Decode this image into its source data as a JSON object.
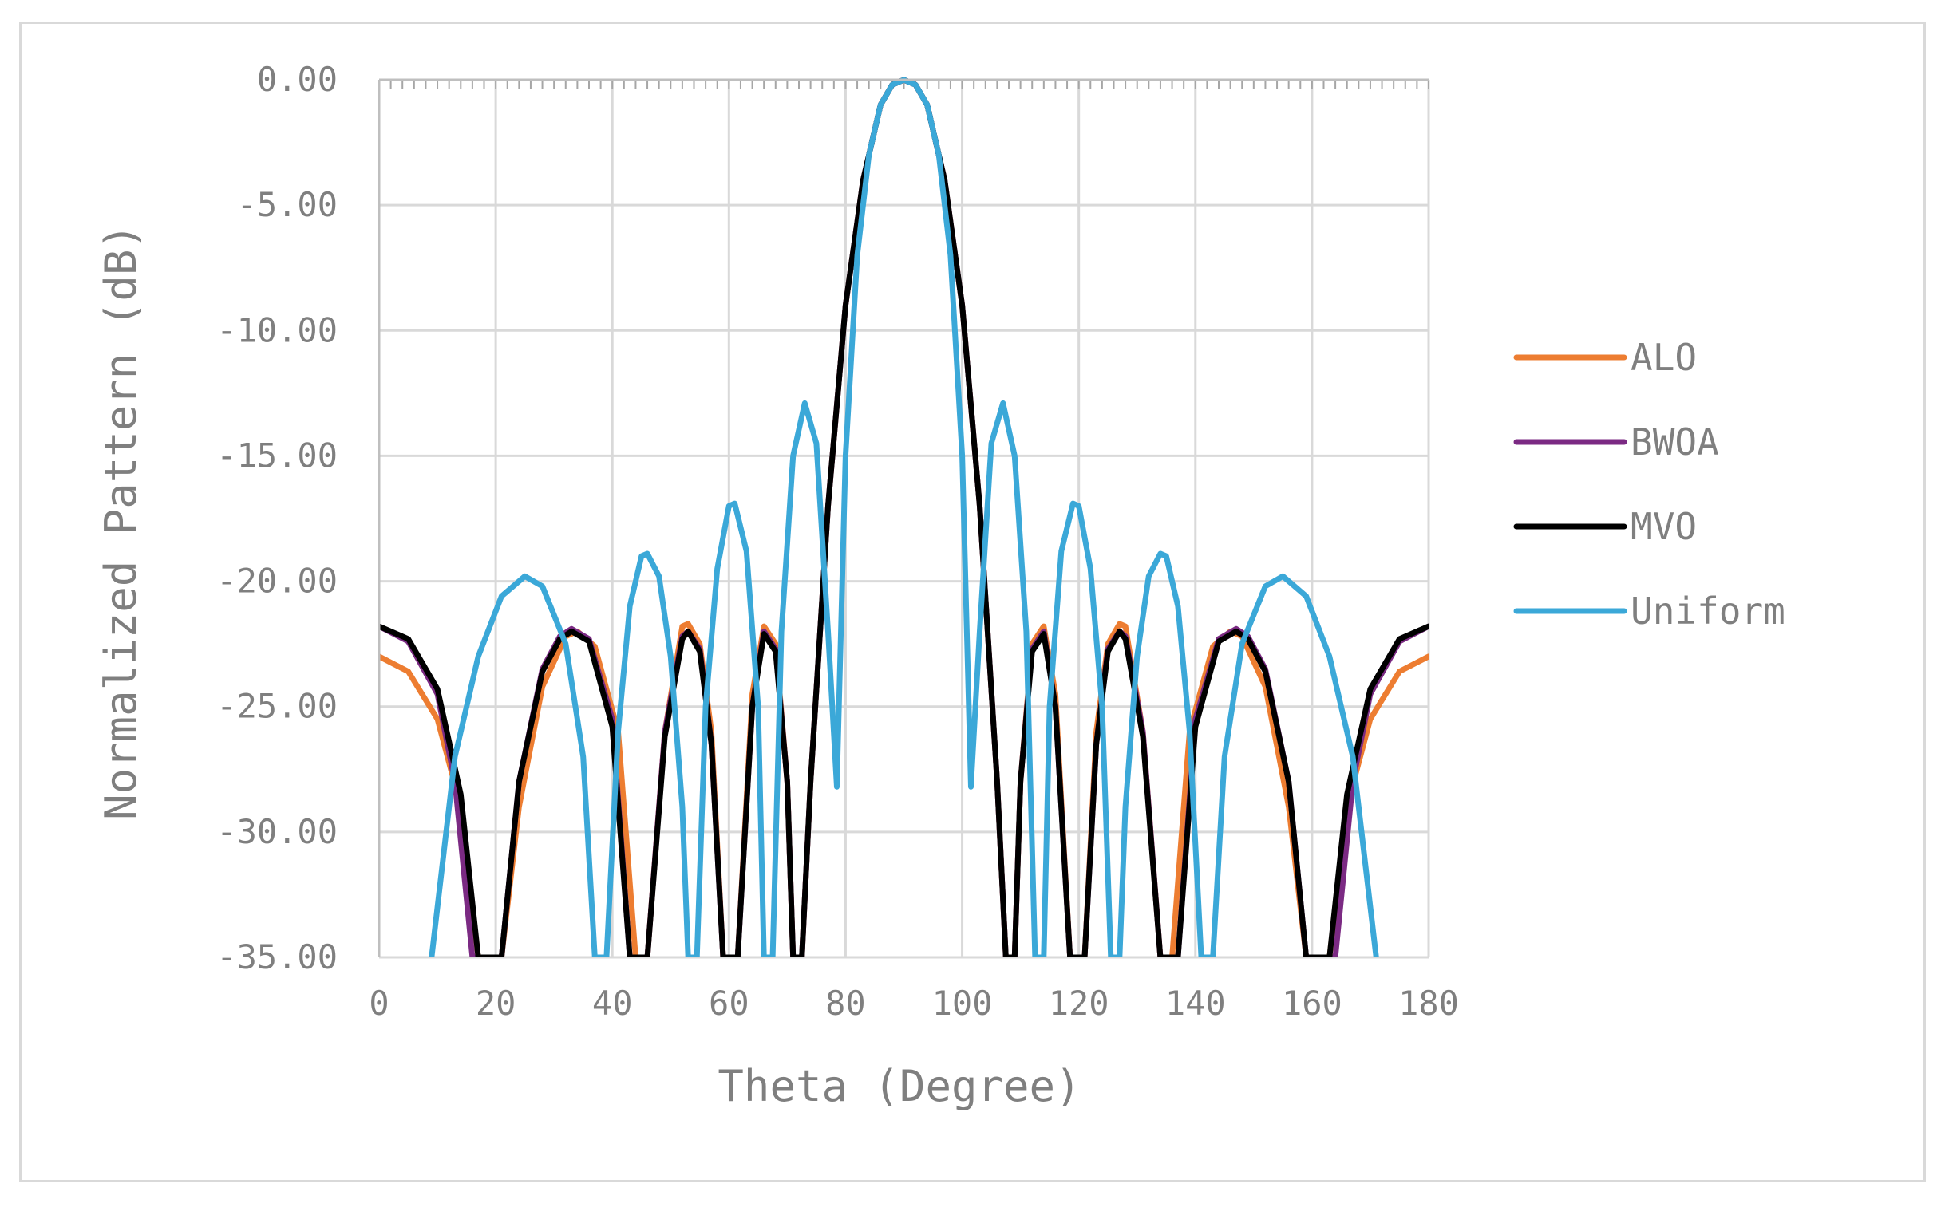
{
  "chart_data": {
    "type": "line",
    "title": "",
    "xlabel": "Theta (Degree)",
    "ylabel": "Normalized Pattern (dB)",
    "xlim": [
      0,
      180
    ],
    "ylim": [
      -35,
      0
    ],
    "x_ticks": [
      0,
      20,
      40,
      60,
      80,
      100,
      120,
      140,
      160,
      180
    ],
    "x_tick_labels": [
      "0",
      "20",
      "40",
      "60",
      "80",
      "100",
      "120",
      "140",
      "160",
      "180"
    ],
    "y_ticks": [
      0,
      -5,
      -10,
      -15,
      -20,
      -25,
      -30,
      -35
    ],
    "y_tick_labels": [
      "0.00",
      "-5.00",
      "-10.00",
      "-15.00",
      "-20.00",
      "-25.00",
      "-30.00",
      "-35.00"
    ],
    "grid": true,
    "legend_position": "right",
    "series": [
      {
        "name": "ALO",
        "color": "#ed7d31",
        "points": [
          [
            0,
            -23
          ],
          [
            5,
            -23.6
          ],
          [
            10,
            -25.5
          ],
          [
            14,
            -29
          ],
          [
            17,
            -35
          ],
          [
            21,
            -35
          ],
          [
            24,
            -29
          ],
          [
            28,
            -24.2
          ],
          [
            32,
            -22.2
          ],
          [
            34,
            -22
          ],
          [
            37,
            -22.6
          ],
          [
            41,
            -26
          ],
          [
            44,
            -35
          ],
          [
            46,
            -35
          ],
          [
            49,
            -26
          ],
          [
            52,
            -21.8
          ],
          [
            53,
            -21.7
          ],
          [
            55,
            -22.5
          ],
          [
            57,
            -26
          ],
          [
            59,
            -35
          ],
          [
            61.5,
            -35
          ],
          [
            64,
            -24.5
          ],
          [
            66,
            -21.8
          ],
          [
            68,
            -22.5
          ],
          [
            70,
            -28
          ],
          [
            71,
            -35
          ],
          [
            72.5,
            -35
          ],
          [
            74,
            -28
          ],
          [
            77,
            -17
          ],
          [
            80,
            -9
          ],
          [
            83,
            -4
          ],
          [
            86,
            -1
          ],
          [
            88,
            -0.2
          ],
          [
            90,
            0
          ],
          [
            92,
            -0.2
          ],
          [
            94,
            -1
          ],
          [
            97,
            -4
          ],
          [
            100,
            -9
          ],
          [
            103,
            -17
          ],
          [
            106,
            -28
          ],
          [
            107.5,
            -35
          ],
          [
            109,
            -35
          ],
          [
            110,
            -28
          ],
          [
            112,
            -22.5
          ],
          [
            114,
            -21.8
          ],
          [
            116,
            -24.5
          ],
          [
            118.5,
            -35
          ],
          [
            121,
            -35
          ],
          [
            123,
            -26
          ],
          [
            125,
            -22.5
          ],
          [
            127,
            -21.7
          ],
          [
            128,
            -21.8
          ],
          [
            131,
            -26
          ],
          [
            134,
            -35
          ],
          [
            136,
            -35
          ],
          [
            139,
            -26
          ],
          [
            143,
            -22.6
          ],
          [
            146,
            -22
          ],
          [
            148,
            -22.2
          ],
          [
            152,
            -24.2
          ],
          [
            156,
            -29
          ],
          [
            159,
            -35
          ],
          [
            163,
            -35
          ],
          [
            166,
            -29
          ],
          [
            170,
            -25.5
          ],
          [
            175,
            -23.6
          ],
          [
            180,
            -23
          ]
        ]
      },
      {
        "name": "BWOA",
        "color": "#7b2a83",
        "points": [
          [
            0,
            -21.8
          ],
          [
            5,
            -22.4
          ],
          [
            10,
            -24.5
          ],
          [
            13,
            -28
          ],
          [
            16,
            -35
          ],
          [
            21,
            -35
          ],
          [
            24,
            -28
          ],
          [
            28,
            -23.5
          ],
          [
            31,
            -22.2
          ],
          [
            33,
            -21.9
          ],
          [
            36,
            -22.3
          ],
          [
            40,
            -25.5
          ],
          [
            43,
            -35
          ],
          [
            46,
            -35
          ],
          [
            49,
            -26
          ],
          [
            52,
            -22.2
          ],
          [
            53,
            -22
          ],
          [
            55,
            -22.7
          ],
          [
            57,
            -26.5
          ],
          [
            59,
            -35
          ],
          [
            61.5,
            -35
          ],
          [
            64,
            -25
          ],
          [
            66,
            -22
          ],
          [
            68,
            -22.7
          ],
          [
            70,
            -28
          ],
          [
            71,
            -35
          ],
          [
            72.5,
            -35
          ],
          [
            74,
            -28
          ],
          [
            77,
            -17
          ],
          [
            80,
            -9
          ],
          [
            83,
            -4
          ],
          [
            86,
            -1
          ],
          [
            88,
            -0.2
          ],
          [
            90,
            0
          ],
          [
            92,
            -0.2
          ],
          [
            94,
            -1
          ],
          [
            97,
            -4
          ],
          [
            100,
            -9
          ],
          [
            103,
            -17
          ],
          [
            106,
            -28
          ],
          [
            107.5,
            -35
          ],
          [
            109,
            -35
          ],
          [
            110,
            -28
          ],
          [
            112,
            -22.7
          ],
          [
            114,
            -22
          ],
          [
            116,
            -25
          ],
          [
            118.5,
            -35
          ],
          [
            121,
            -35
          ],
          [
            123,
            -26.5
          ],
          [
            125,
            -22.7
          ],
          [
            127,
            -22
          ],
          [
            128,
            -22.2
          ],
          [
            131,
            -26
          ],
          [
            134,
            -35
          ],
          [
            137,
            -35
          ],
          [
            140,
            -25.5
          ],
          [
            144,
            -22.3
          ],
          [
            147,
            -21.9
          ],
          [
            149,
            -22.2
          ],
          [
            152,
            -23.5
          ],
          [
            156,
            -28
          ],
          [
            159,
            -35
          ],
          [
            164,
            -35
          ],
          [
            167,
            -28
          ],
          [
            170,
            -24.5
          ],
          [
            175,
            -22.4
          ],
          [
            180,
            -21.8
          ]
        ]
      },
      {
        "name": "MVO",
        "color": "#000000",
        "points": [
          [
            0,
            -21.8
          ],
          [
            5,
            -22.3
          ],
          [
            10,
            -24.3
          ],
          [
            14,
            -28.5
          ],
          [
            17,
            -35
          ],
          [
            21,
            -35
          ],
          [
            24,
            -28
          ],
          [
            28,
            -23.6
          ],
          [
            31,
            -22.3
          ],
          [
            33,
            -22
          ],
          [
            36,
            -22.4
          ],
          [
            40,
            -25.8
          ],
          [
            43,
            -35
          ],
          [
            46,
            -35
          ],
          [
            49,
            -26.2
          ],
          [
            52,
            -22.3
          ],
          [
            53,
            -22
          ],
          [
            55,
            -22.8
          ],
          [
            57,
            -26.5
          ],
          [
            59,
            -35
          ],
          [
            61.5,
            -35
          ],
          [
            64,
            -25
          ],
          [
            66,
            -22.1
          ],
          [
            68,
            -22.8
          ],
          [
            70,
            -28
          ],
          [
            71,
            -35
          ],
          [
            72.5,
            -35
          ],
          [
            74,
            -28
          ],
          [
            77,
            -17
          ],
          [
            80,
            -9
          ],
          [
            83,
            -4
          ],
          [
            86,
            -1
          ],
          [
            88,
            -0.2
          ],
          [
            90,
            0
          ],
          [
            92,
            -0.2
          ],
          [
            94,
            -1
          ],
          [
            97,
            -4
          ],
          [
            100,
            -9
          ],
          [
            103,
            -17
          ],
          [
            106,
            -28
          ],
          [
            107.5,
            -35
          ],
          [
            109,
            -35
          ],
          [
            110,
            -28
          ],
          [
            112,
            -22.8
          ],
          [
            114,
            -22.1
          ],
          [
            116,
            -25
          ],
          [
            118.5,
            -35
          ],
          [
            121,
            -35
          ],
          [
            123,
            -26.5
          ],
          [
            125,
            -22.8
          ],
          [
            127,
            -22
          ],
          [
            128,
            -22.3
          ],
          [
            131,
            -26.2
          ],
          [
            134,
            -35
          ],
          [
            137,
            -35
          ],
          [
            140,
            -25.8
          ],
          [
            144,
            -22.4
          ],
          [
            147,
            -22
          ],
          [
            149,
            -22.3
          ],
          [
            152,
            -23.6
          ],
          [
            156,
            -28
          ],
          [
            159,
            -35
          ],
          [
            163,
            -35
          ],
          [
            166,
            -28.5
          ],
          [
            170,
            -24.3
          ],
          [
            175,
            -22.3
          ],
          [
            180,
            -21.8
          ]
        ]
      },
      {
        "name": "Uniform",
        "color": "#3ba8d8",
        "points": [
          [
            9,
            -35
          ],
          [
            13,
            -27
          ],
          [
            17,
            -23
          ],
          [
            21,
            -20.6
          ],
          [
            25,
            -19.8
          ],
          [
            28,
            -20.2
          ],
          [
            32,
            -22.5
          ],
          [
            35,
            -27
          ],
          [
            37,
            -35
          ],
          [
            39,
            -35
          ],
          [
            41,
            -26
          ],
          [
            43,
            -21
          ],
          [
            45,
            -19
          ],
          [
            46,
            -18.9
          ],
          [
            48,
            -19.8
          ],
          [
            50,
            -23
          ],
          [
            52,
            -29
          ],
          [
            53,
            -35
          ],
          [
            54.5,
            -35
          ],
          [
            56,
            -25
          ],
          [
            58,
            -19.5
          ],
          [
            60,
            -17
          ],
          [
            61,
            -16.9
          ],
          [
            63,
            -18.8
          ],
          [
            65,
            -25
          ],
          [
            66,
            -35
          ],
          [
            67.5,
            -35
          ],
          [
            69,
            -22
          ],
          [
            71,
            -15
          ],
          [
            73,
            -12.9
          ],
          [
            75,
            -14.5
          ],
          [
            77,
            -22
          ],
          [
            78.5,
            -28.2
          ],
          [
            80,
            -15
          ],
          [
            82,
            -7
          ],
          [
            84,
            -3
          ],
          [
            86,
            -1
          ],
          [
            88,
            -0.2
          ],
          [
            90,
            0
          ],
          [
            92,
            -0.2
          ],
          [
            94,
            -1
          ],
          [
            96,
            -3
          ],
          [
            98,
            -7
          ],
          [
            100,
            -15
          ],
          [
            101.5,
            -28.2
          ],
          [
            103,
            -22
          ],
          [
            105,
            -14.5
          ],
          [
            107,
            -12.9
          ],
          [
            109,
            -15
          ],
          [
            111,
            -22
          ],
          [
            112.5,
            -35
          ],
          [
            114,
            -35
          ],
          [
            115,
            -25
          ],
          [
            117,
            -18.8
          ],
          [
            119,
            -16.9
          ],
          [
            120,
            -17
          ],
          [
            122,
            -19.5
          ],
          [
            124,
            -25
          ],
          [
            125.5,
            -35
          ],
          [
            127,
            -35
          ],
          [
            128,
            -29
          ],
          [
            130,
            -23
          ],
          [
            132,
            -19.8
          ],
          [
            134,
            -18.9
          ],
          [
            135,
            -19
          ],
          [
            137,
            -21
          ],
          [
            139,
            -26
          ],
          [
            141,
            -35
          ],
          [
            143,
            -35
          ],
          [
            145,
            -27
          ],
          [
            148,
            -22.5
          ],
          [
            152,
            -20.2
          ],
          [
            155,
            -19.8
          ],
          [
            159,
            -20.6
          ],
          [
            163,
            -23
          ],
          [
            167,
            -27
          ],
          [
            171,
            -35
          ]
        ]
      }
    ]
  }
}
